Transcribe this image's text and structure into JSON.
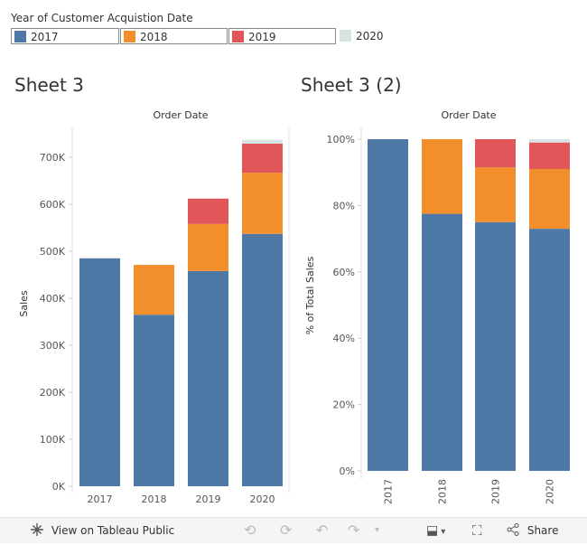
{
  "legend": {
    "title": "Year of Customer Acquistion Date",
    "items": [
      {
        "label": "2017",
        "color": "#4e79a7"
      },
      {
        "label": "2018",
        "color": "#f28e2b"
      },
      {
        "label": "2019",
        "color": "#e15759"
      },
      {
        "label": "2020",
        "color": "#d7e4e4"
      }
    ]
  },
  "chart_data": [
    {
      "type": "bar",
      "title": "Sheet 3",
      "xlabel": "Order Date",
      "ylabel": "Sales",
      "stacked": true,
      "categories": [
        "2017",
        "2018",
        "2019",
        "2020"
      ],
      "y_ticks": [
        "0K",
        "100K",
        "200K",
        "300K",
        "400K",
        "500K",
        "600K",
        "700K"
      ],
      "ylim": [
        0,
        750000
      ],
      "series": [
        {
          "name": "2017",
          "values": [
            485000,
            365000,
            458000,
            537000
          ]
        },
        {
          "name": "2018",
          "values": [
            0,
            106000,
            100000,
            130000
          ]
        },
        {
          "name": "2019",
          "values": [
            0,
            0,
            54000,
            62000
          ]
        },
        {
          "name": "2020",
          "values": [
            0,
            0,
            0,
            8000
          ]
        }
      ]
    },
    {
      "type": "bar",
      "title": "Sheet 3 (2)",
      "xlabel": "Order Date",
      "ylabel": "% of Total Sales",
      "stacked": true,
      "categories": [
        "2017",
        "2018",
        "2019",
        "2020"
      ],
      "y_ticks": [
        "0%",
        "20%",
        "40%",
        "60%",
        "80%",
        "100%"
      ],
      "ylim": [
        0,
        1
      ],
      "series": [
        {
          "name": "2017",
          "values": [
            1.0,
            0.775,
            0.75,
            0.73
          ]
        },
        {
          "name": "2018",
          "values": [
            0,
            0.225,
            0.165,
            0.18
          ]
        },
        {
          "name": "2019",
          "values": [
            0,
            0,
            0.085,
            0.08
          ]
        },
        {
          "name": "2020",
          "values": [
            0,
            0,
            0,
            0.01
          ]
        }
      ]
    }
  ],
  "toolbar": {
    "view_label": "View on Tableau Public",
    "share_label": "Share"
  }
}
